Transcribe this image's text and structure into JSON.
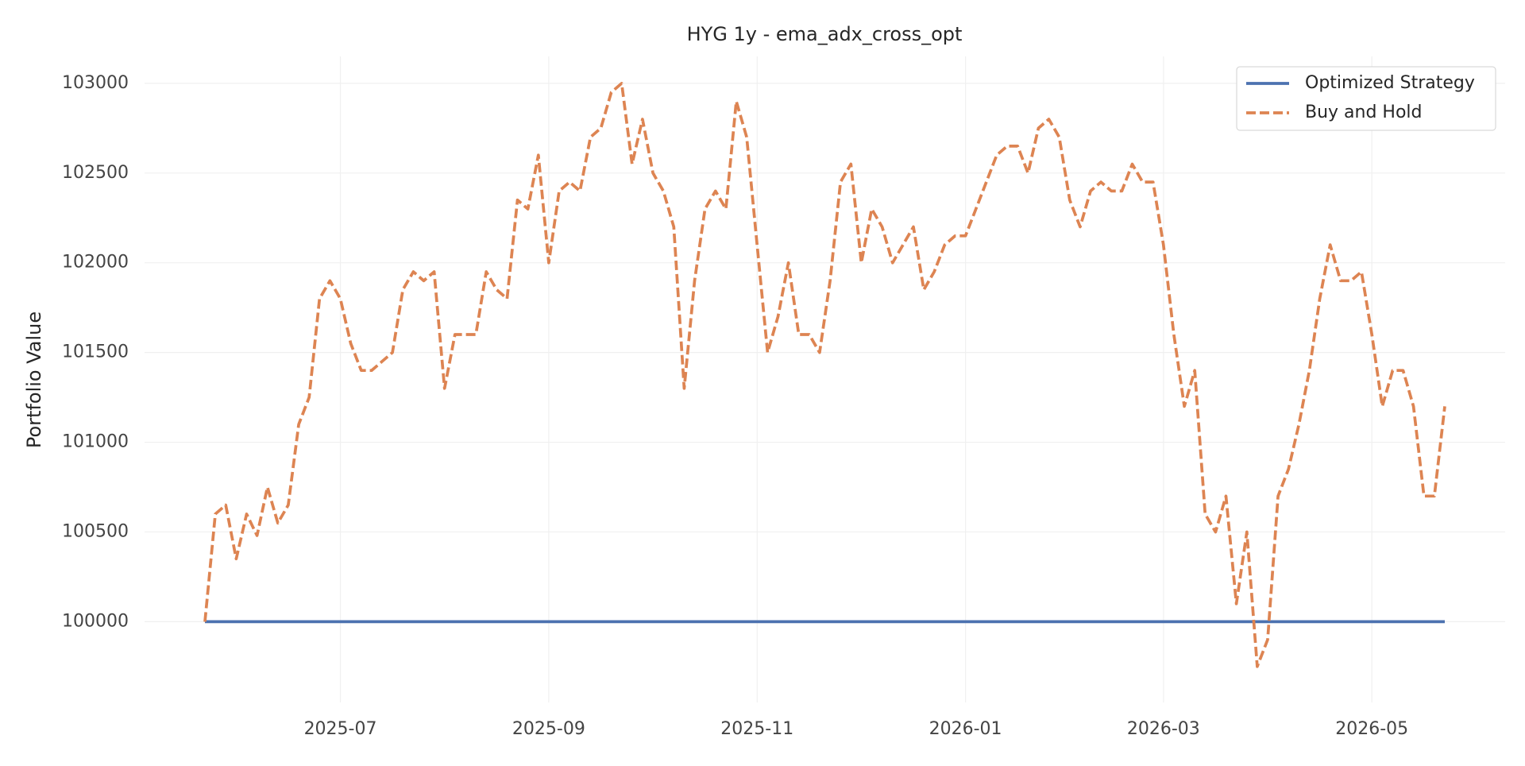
{
  "chart_data": {
    "type": "line",
    "title": "HYG 1y - ema_adx_cross_opt",
    "ylabel": "Portfolio Value",
    "categories": [
      null,
      null,
      null,
      null,
      null,
      null,
      null,
      null,
      null,
      null,
      null,
      null,
      null,
      "2025-07",
      null,
      null,
      null,
      null,
      null,
      null,
      null,
      null,
      null,
      null,
      null,
      null,
      null,
      null,
      null,
      null,
      null,
      null,
      null,
      "2025-09",
      null,
      null,
      null,
      null,
      null,
      null,
      null,
      null,
      null,
      null,
      null,
      null,
      null,
      null,
      null,
      null,
      null,
      null,
      null,
      "2025-11",
      null,
      null,
      null,
      null,
      null,
      null,
      null,
      null,
      null,
      null,
      null,
      null,
      null,
      null,
      null,
      null,
      null,
      null,
      null,
      "2026-01",
      null,
      null,
      null,
      null,
      null,
      null,
      null,
      null,
      null,
      null,
      null,
      null,
      null,
      null,
      null,
      null,
      null,
      null,
      "2026-03",
      null,
      null,
      null,
      null,
      null,
      null,
      null,
      null,
      null,
      null,
      null,
      null,
      null,
      null,
      null,
      null,
      null,
      null,
      null,
      "2026-05",
      null,
      null,
      null,
      null,
      null,
      null,
      null
    ],
    "series": [
      {
        "name": "Optimized Strategy",
        "color": "#4c72b0",
        "dash": false,
        "values": [
          100000,
          100000,
          100000,
          100000,
          100000,
          100000,
          100000,
          100000,
          100000,
          100000,
          100000,
          100000,
          100000,
          100000,
          100000,
          100000,
          100000,
          100000,
          100000,
          100000,
          100000,
          100000,
          100000,
          100000,
          100000,
          100000,
          100000,
          100000,
          100000,
          100000,
          100000,
          100000,
          100000,
          100000,
          100000,
          100000,
          100000,
          100000,
          100000,
          100000,
          100000,
          100000,
          100000,
          100000,
          100000,
          100000,
          100000,
          100000,
          100000,
          100000,
          100000,
          100000,
          100000,
          100000,
          100000,
          100000,
          100000,
          100000,
          100000,
          100000,
          100000,
          100000,
          100000,
          100000,
          100000,
          100000,
          100000,
          100000,
          100000,
          100000,
          100000,
          100000,
          100000,
          100000,
          100000,
          100000,
          100000,
          100000,
          100000,
          100000,
          100000,
          100000,
          100000,
          100000,
          100000,
          100000,
          100000,
          100000,
          100000,
          100000,
          100000,
          100000,
          100000,
          100000,
          100000,
          100000,
          100000,
          100000,
          100000,
          100000,
          100000,
          100000,
          100000,
          100000,
          100000,
          100000,
          100000,
          100000,
          100000,
          100000,
          100000,
          100000,
          100000,
          100000,
          100000,
          100000,
          100000,
          100000,
          100000,
          100000
        ]
      },
      {
        "name": "Buy and Hold",
        "color": "#dd8452",
        "dash": true,
        "values": [
          100000,
          100600,
          100650,
          100350,
          100600,
          100480,
          100750,
          100550,
          100650,
          101100,
          101250,
          101800,
          101900,
          101800,
          101550,
          101400,
          101400,
          101450,
          101500,
          101850,
          101950,
          101900,
          101950,
          101300,
          101600,
          101600,
          101600,
          101950,
          101850,
          101800,
          102350,
          102300,
          102600,
          102000,
          102400,
          102450,
          102400,
          102700,
          102750,
          102950,
          103000,
          102550,
          102800,
          102500,
          102400,
          102200,
          101300,
          101900,
          102300,
          102400,
          102300,
          102900,
          102700,
          102100,
          101500,
          101700,
          102000,
          101600,
          101600,
          101500,
          101900,
          102450,
          102550,
          102000,
          102300,
          102200,
          102000,
          102100,
          102200,
          101850,
          101950,
          102100,
          102150,
          102150,
          102300,
          102450,
          102600,
          102650,
          102650,
          102500,
          102750,
          102800,
          102700,
          102350,
          102200,
          102400,
          102450,
          102400,
          102400,
          102550,
          102450,
          102450,
          102100,
          101600,
          101200,
          101400,
          100600,
          100500,
          100700,
          100100,
          100500,
          99750,
          99900,
          100700,
          100850,
          101100,
          101400,
          101800,
          102100,
          101900,
          101900,
          101950,
          101600,
          101200,
          101400,
          101400,
          101200,
          100700,
          100700,
          101200
        ]
      }
    ],
    "ylim": [
      99550,
      103150
    ],
    "yticks": [
      100000,
      100500,
      101000,
      101500,
      102000,
      102500,
      103000
    ],
    "grid": true,
    "legend": "upper right"
  }
}
